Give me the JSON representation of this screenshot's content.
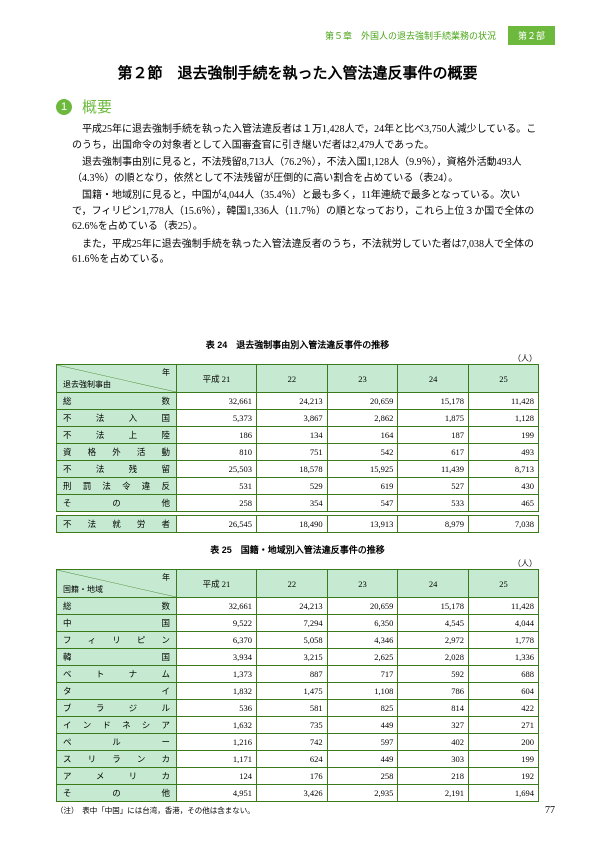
{
  "header": {
    "chapter": "第５章　外国人の退去強制手続業務の状況",
    "part": "第２部"
  },
  "sectionTitle": "第２節　退去強制手続を執った入管法違反事件の概要",
  "overviewLabel": "概要",
  "paragraphs": [
    "平成25年に退去強制手続を執った入管法違反者は１万1,428人で，24年と比べ3,750人減少している。このうち，出国命令の対象者として入国審査官に引き継いだ者は2,479人であった。",
    "退去強制事由別に見ると，不法残留8,713人（76.2％），不法入国1,128人（9.9％），資格外活動493人（4.3％）の順となり，依然として不法残留が圧倒的に高い割合を占めている（表24）。",
    "国籍・地域別に見ると，中国が4,044人（35.4％）と最も多く，11年連続で最多となっている。次いで，フィリピン1,778人（15.6％），韓国1,336人（11.7％）の順となっており，これら上位３か国で全体の62.6%を占めている（表25）。",
    "また，平成25年に退去強制手続を執った入管法違反者のうち，不法就労していた者は7,038人で全体の61.6％を占めている。"
  ],
  "table24": {
    "caption": "表 24　退去強制事由別入管法違反事件の推移",
    "unit": "（人）",
    "diagTop": "年",
    "diagBottom": "退去強制事由",
    "years": [
      "平成 21",
      "22",
      "23",
      "24",
      "25"
    ],
    "rows": [
      {
        "label": "総　　　　　　　　　　数",
        "v": [
          "32,661",
          "24,213",
          "20,659",
          "15,178",
          "11,428"
        ]
      },
      {
        "label": "不　　法　　入　　国",
        "v": [
          "5,373",
          "3,867",
          "2,862",
          "1,875",
          "1,128"
        ]
      },
      {
        "label": "不　　法　　上　　陸",
        "v": [
          "186",
          "134",
          "164",
          "187",
          "199"
        ]
      },
      {
        "label": "資　格　外　活　動",
        "v": [
          "810",
          "751",
          "542",
          "617",
          "493"
        ]
      },
      {
        "label": "不　　法　　残　　留",
        "v": [
          "25,503",
          "18,578",
          "15,925",
          "11,439",
          "8,713"
        ]
      },
      {
        "label": "刑　罰　法　令　違　反",
        "v": [
          "531",
          "529",
          "619",
          "527",
          "430"
        ]
      },
      {
        "label": "そ　　　の　　　他",
        "v": [
          "258",
          "354",
          "547",
          "533",
          "465"
        ]
      }
    ],
    "extraRow": {
      "label": "不　法　就　労　者",
      "v": [
        "26,545",
        "18,490",
        "13,913",
        "8,979",
        "7,038"
      ]
    }
  },
  "table25": {
    "caption": "表 25　国籍・地域別入管法違反事件の推移",
    "unit": "（人）",
    "diagTop": "年",
    "diagBottom": "国籍・地域",
    "years": [
      "平成 21",
      "22",
      "23",
      "24",
      "25"
    ],
    "rows": [
      {
        "label": "総　　　　　　　数",
        "v": [
          "32,661",
          "24,213",
          "20,659",
          "15,178",
          "11,428"
        ]
      },
      {
        "label": "中　　　　　　　国",
        "v": [
          "9,522",
          "7,294",
          "6,350",
          "4,545",
          "4,044"
        ]
      },
      {
        "label": "フ　ィ　リ　ピ　ン",
        "v": [
          "6,370",
          "5,058",
          "4,346",
          "2,972",
          "1,778"
        ]
      },
      {
        "label": "韓　　　　　　　国",
        "v": [
          "3,934",
          "3,215",
          "2,625",
          "2,028",
          "1,336"
        ]
      },
      {
        "label": "ベ　　ト　　ナ　　ム",
        "v": [
          "1,373",
          "887",
          "717",
          "592",
          "688"
        ]
      },
      {
        "label": "タ　　　　　　　イ",
        "v": [
          "1,832",
          "1,475",
          "1,108",
          "786",
          "604"
        ]
      },
      {
        "label": "ブ　　ラ　　ジ　　ル",
        "v": [
          "536",
          "581",
          "825",
          "814",
          "422"
        ]
      },
      {
        "label": "イ　ン　ド　ネ　シ　ア",
        "v": [
          "1,632",
          "735",
          "449",
          "327",
          "271"
        ]
      },
      {
        "label": "ペ　　　ル　　　ー",
        "v": [
          "1,216",
          "742",
          "597",
          "402",
          "200"
        ]
      },
      {
        "label": "ス　リ　ラ　ン　カ",
        "v": [
          "1,171",
          "624",
          "449",
          "303",
          "199"
        ]
      },
      {
        "label": "ア　　メ　　リ　　カ",
        "v": [
          "124",
          "176",
          "258",
          "218",
          "192"
        ]
      },
      {
        "label": "そ　　の　　他",
        "v": [
          "4,951",
          "3,426",
          "2,935",
          "2,191",
          "1,694"
        ]
      }
    ],
    "note": "（注）　表中「中国」には台湾，香港，その他は含まない。"
  },
  "pageNumber": "77"
}
